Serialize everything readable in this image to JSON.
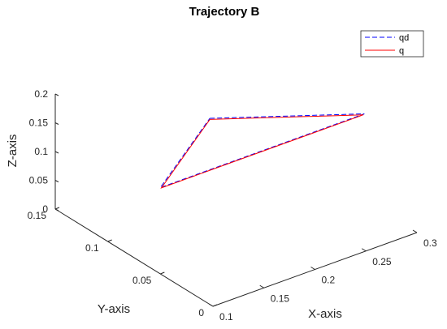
{
  "chart_data": {
    "type": "line",
    "view": "3d",
    "title": "Trajectory B",
    "xlabel": "X-axis",
    "ylabel": "Y-axis",
    "zlabel": "Z-axis",
    "xlim": [
      0.1,
      0.3
    ],
    "ylim": [
      0,
      0.15
    ],
    "zlim": [
      0,
      0.2
    ],
    "xticks": [
      "0.1",
      "0.15",
      "0.2",
      "0.25",
      "0.3"
    ],
    "yticks": [
      "0",
      "0.05",
      "0.1",
      "0.15"
    ],
    "zticks": [
      "0",
      "0.05",
      "0.1",
      "0.15",
      "0.2"
    ],
    "grid": false,
    "legend_position": "top-right",
    "series": [
      {
        "name": "qd",
        "color": "#0000ff",
        "style": "dashed",
        "points": [
          [
            0.2,
            0.1,
            0.15
          ],
          [
            0.3,
            0.05,
            0.15
          ],
          [
            0.1,
            0.05,
            0.15
          ],
          [
            0.2,
            0.1,
            0.15
          ]
        ]
      },
      {
        "name": "q",
        "color": "#ff0000",
        "style": "solid",
        "points": [
          [
            0.2,
            0.1,
            0.148
          ],
          [
            0.299,
            0.05,
            0.149
          ],
          [
            0.101,
            0.05,
            0.149
          ],
          [
            0.2,
            0.1,
            0.148
          ]
        ]
      }
    ]
  }
}
